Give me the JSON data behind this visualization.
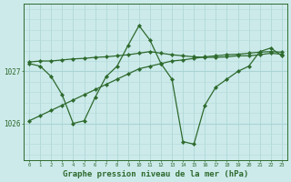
{
  "background_color": "#cceaea",
  "grid_color_v": "#aad4d4",
  "grid_color_h": "#b8dcdc",
  "line_color": "#2d6a2d",
  "marker_color": "#2d6a2d",
  "xlabel": "Graphe pression niveau de la mer (hPa)",
  "xlabel_fontsize": 6.5,
  "ytick_labels": [
    "1026",
    "1027"
  ],
  "ytick_values": [
    1026.0,
    1027.0
  ],
  "ylim": [
    1025.3,
    1028.3
  ],
  "xlim": [
    -0.5,
    23.5
  ],
  "xtick_values": [
    0,
    1,
    2,
    3,
    4,
    5,
    6,
    7,
    8,
    9,
    10,
    11,
    12,
    13,
    14,
    15,
    16,
    17,
    18,
    19,
    20,
    21,
    22,
    23
  ],
  "series": [
    {
      "x": [
        0,
        1,
        2,
        3,
        4,
        5,
        6,
        7,
        8,
        9,
        10,
        11,
        12,
        13,
        14,
        15,
        16,
        17,
        18,
        19,
        20,
        21,
        22,
        23
      ],
      "y": [
        1027.18,
        1027.2,
        1027.2,
        1027.22,
        1027.24,
        1027.25,
        1027.27,
        1027.28,
        1027.3,
        1027.32,
        1027.35,
        1027.38,
        1027.35,
        1027.32,
        1027.3,
        1027.28,
        1027.27,
        1027.27,
        1027.28,
        1027.3,
        1027.3,
        1027.32,
        1027.35,
        1027.33
      ]
    },
    {
      "x": [
        0,
        1,
        2,
        3,
        4,
        5,
        6,
        7,
        8,
        9,
        10,
        11,
        12,
        13,
        14,
        15,
        16,
        17,
        18,
        19,
        20,
        21,
        22,
        23
      ],
      "y": [
        1027.15,
        1027.1,
        1026.9,
        1026.55,
        1026.0,
        1026.05,
        1026.5,
        1026.9,
        1027.1,
        1027.5,
        1027.88,
        1027.6,
        1027.15,
        1026.85,
        1025.65,
        1025.6,
        1026.35,
        1026.7,
        1026.85,
        1027.0,
        1027.1,
        1027.38,
        1027.45,
        1027.3
      ]
    },
    {
      "x": [
        0,
        1,
        2,
        3,
        4,
        5,
        6,
        7,
        8,
        9,
        10,
        11,
        12,
        13,
        14,
        15,
        16,
        17,
        18,
        19,
        20,
        21,
        22,
        23
      ],
      "y": [
        1026.05,
        1026.15,
        1026.25,
        1026.35,
        1026.45,
        1026.55,
        1026.65,
        1026.75,
        1026.85,
        1026.95,
        1027.05,
        1027.1,
        1027.15,
        1027.2,
        1027.22,
        1027.25,
        1027.28,
        1027.3,
        1027.32,
        1027.33,
        1027.35,
        1027.37,
        1027.38,
        1027.37
      ]
    }
  ]
}
